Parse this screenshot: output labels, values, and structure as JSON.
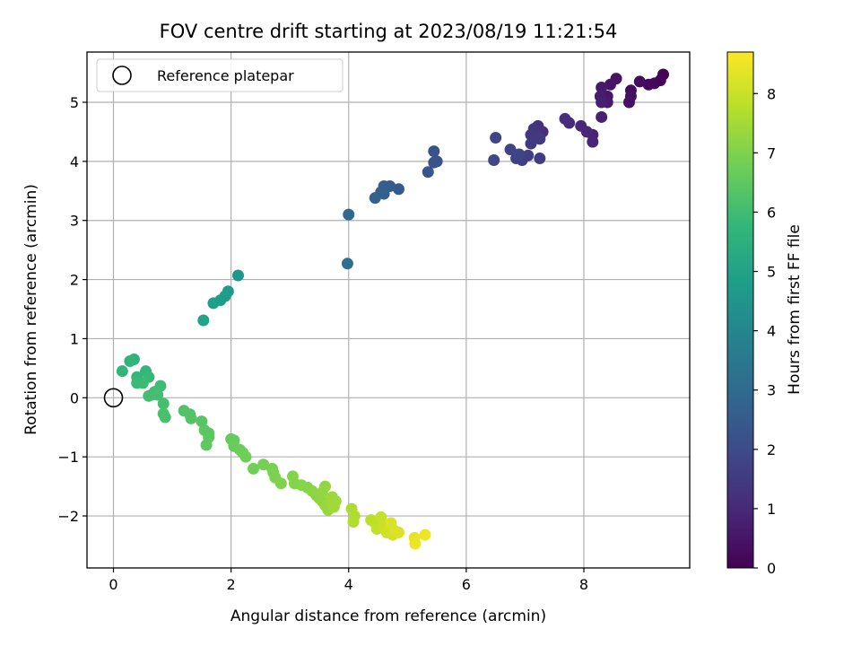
{
  "chart_data": {
    "type": "scatter",
    "title": "FOV centre drift starting at 2023/08/19 11:21:54",
    "xlabel": "Angular distance from reference (arcmin)",
    "ylabel": "Rotation from reference (arcmin)",
    "xlim": [
      -0.45,
      9.8
    ],
    "ylim": [
      -2.88,
      5.85
    ],
    "xticks": [
      0,
      2,
      4,
      6,
      8
    ],
    "yticks": [
      -2,
      -1,
      0,
      1,
      2,
      3,
      4,
      5
    ],
    "grid": true,
    "legend": {
      "position": "top-left",
      "entries": [
        "Reference platepar"
      ]
    },
    "reference_point": {
      "x": 0,
      "y": 0,
      "label": "Reference platepar"
    },
    "colorbar": {
      "label": "Hours from first FF file",
      "colormap": "viridis",
      "range": [
        0,
        8.7
      ],
      "ticks": [
        0,
        1,
        2,
        3,
        4,
        5,
        6,
        7,
        8
      ]
    },
    "points": [
      {
        "x": 9.35,
        "y": 5.47,
        "c": 0.05
      },
      {
        "x": 9.3,
        "y": 5.37,
        "c": 0.1
      },
      {
        "x": 9.2,
        "y": 5.32,
        "c": 0.15
      },
      {
        "x": 9.1,
        "y": 5.3,
        "c": 0.2
      },
      {
        "x": 8.95,
        "y": 5.35,
        "c": 0.25
      },
      {
        "x": 8.8,
        "y": 5.2,
        "c": 0.3
      },
      {
        "x": 8.8,
        "y": 5.1,
        "c": 0.35
      },
      {
        "x": 8.77,
        "y": 5.0,
        "c": 0.4
      },
      {
        "x": 8.55,
        "y": 5.4,
        "c": 0.45
      },
      {
        "x": 8.45,
        "y": 5.3,
        "c": 0.5
      },
      {
        "x": 8.4,
        "y": 5.1,
        "c": 0.55
      },
      {
        "x": 8.4,
        "y": 5.0,
        "c": 0.6
      },
      {
        "x": 8.3,
        "y": 5.25,
        "c": 0.65
      },
      {
        "x": 8.28,
        "y": 5.1,
        "c": 0.7
      },
      {
        "x": 8.3,
        "y": 5.0,
        "c": 0.75
      },
      {
        "x": 8.3,
        "y": 4.75,
        "c": 0.8
      },
      {
        "x": 8.15,
        "y": 4.45,
        "c": 0.85
      },
      {
        "x": 8.15,
        "y": 4.33,
        "c": 0.9
      },
      {
        "x": 8.05,
        "y": 4.5,
        "c": 0.95
      },
      {
        "x": 7.95,
        "y": 4.6,
        "c": 1.0
      },
      {
        "x": 7.75,
        "y": 4.65,
        "c": 1.05
      },
      {
        "x": 7.68,
        "y": 4.72,
        "c": 1.1
      },
      {
        "x": 7.3,
        "y": 4.5,
        "c": 1.2
      },
      {
        "x": 7.22,
        "y": 4.6,
        "c": 1.25
      },
      {
        "x": 7.2,
        "y": 4.45,
        "c": 1.3
      },
      {
        "x": 7.15,
        "y": 4.55,
        "c": 1.35
      },
      {
        "x": 7.1,
        "y": 4.45,
        "c": 1.4
      },
      {
        "x": 7.25,
        "y": 4.38,
        "c": 1.45
      },
      {
        "x": 7.1,
        "y": 4.3,
        "c": 1.5
      },
      {
        "x": 7.25,
        "y": 4.05,
        "c": 1.55
      },
      {
        "x": 7.05,
        "y": 4.1,
        "c": 1.6
      },
      {
        "x": 6.95,
        "y": 4.02,
        "c": 1.65
      },
      {
        "x": 6.85,
        "y": 4.05,
        "c": 1.7
      },
      {
        "x": 6.75,
        "y": 4.2,
        "c": 1.75
      },
      {
        "x": 6.9,
        "y": 4.12,
        "c": 1.8
      },
      {
        "x": 6.5,
        "y": 4.4,
        "c": 1.85
      },
      {
        "x": 6.47,
        "y": 4.02,
        "c": 1.9
      },
      {
        "x": 5.5,
        "y": 4.0,
        "c": 2.15
      },
      {
        "x": 5.45,
        "y": 4.17,
        "c": 2.2
      },
      {
        "x": 5.45,
        "y": 3.98,
        "c": 2.25
      },
      {
        "x": 5.35,
        "y": 3.82,
        "c": 2.3
      },
      {
        "x": 4.85,
        "y": 3.53,
        "c": 2.45
      },
      {
        "x": 4.7,
        "y": 3.58,
        "c": 2.5
      },
      {
        "x": 4.6,
        "y": 3.58,
        "c": 2.55
      },
      {
        "x": 4.55,
        "y": 3.48,
        "c": 2.6
      },
      {
        "x": 4.6,
        "y": 3.45,
        "c": 2.65
      },
      {
        "x": 4.45,
        "y": 3.38,
        "c": 2.7
      },
      {
        "x": 4.0,
        "y": 3.1,
        "c": 2.9
      },
      {
        "x": 3.98,
        "y": 2.27,
        "c": 3.2
      },
      {
        "x": 2.12,
        "y": 2.07,
        "c": 4.6
      },
      {
        "x": 1.95,
        "y": 1.8,
        "c": 4.7
      },
      {
        "x": 1.9,
        "y": 1.72,
        "c": 4.75
      },
      {
        "x": 1.82,
        "y": 1.65,
        "c": 4.8
      },
      {
        "x": 1.7,
        "y": 1.6,
        "c": 4.85
      },
      {
        "x": 1.53,
        "y": 1.31,
        "c": 5.0
      },
      {
        "x": 0.35,
        "y": 0.65,
        "c": 5.6
      },
      {
        "x": 0.28,
        "y": 0.62,
        "c": 5.65
      },
      {
        "x": 0.15,
        "y": 0.45,
        "c": 5.7
      },
      {
        "x": 0.55,
        "y": 0.45,
        "c": 5.75
      },
      {
        "x": 0.4,
        "y": 0.35,
        "c": 5.8
      },
      {
        "x": 0.6,
        "y": 0.35,
        "c": 5.85
      },
      {
        "x": 0.4,
        "y": 0.25,
        "c": 5.9
      },
      {
        "x": 0.5,
        "y": 0.25,
        "c": 5.92
      },
      {
        "x": 0.8,
        "y": 0.2,
        "c": 5.95
      },
      {
        "x": 0.7,
        "y": 0.1,
        "c": 6.0
      },
      {
        "x": 0.65,
        "y": 0.05,
        "c": 6.02
      },
      {
        "x": 0.6,
        "y": 0.03,
        "c": 6.05
      },
      {
        "x": 0.75,
        "y": 0.05,
        "c": 6.08
      },
      {
        "x": 0.85,
        "y": -0.1,
        "c": 6.1
      },
      {
        "x": 0.85,
        "y": -0.27,
        "c": 6.15
      },
      {
        "x": 0.88,
        "y": -0.33,
        "c": 6.18
      },
      {
        "x": 1.2,
        "y": -0.22,
        "c": 6.25
      },
      {
        "x": 1.3,
        "y": -0.28,
        "c": 6.3
      },
      {
        "x": 1.32,
        "y": -0.35,
        "c": 6.33
      },
      {
        "x": 1.5,
        "y": -0.4,
        "c": 6.38
      },
      {
        "x": 1.55,
        "y": -0.55,
        "c": 6.42
      },
      {
        "x": 1.62,
        "y": -0.6,
        "c": 6.45
      },
      {
        "x": 1.62,
        "y": -0.67,
        "c": 6.48
      },
      {
        "x": 1.58,
        "y": -0.8,
        "c": 6.5
      },
      {
        "x": 2.0,
        "y": -0.7,
        "c": 6.6
      },
      {
        "x": 2.05,
        "y": -0.72,
        "c": 6.63
      },
      {
        "x": 2.05,
        "y": -0.82,
        "c": 6.66
      },
      {
        "x": 2.15,
        "y": -0.88,
        "c": 6.7
      },
      {
        "x": 2.2,
        "y": -0.93,
        "c": 6.73
      },
      {
        "x": 2.25,
        "y": -1.0,
        "c": 6.76
      },
      {
        "x": 2.38,
        "y": -1.2,
        "c": 6.8
      },
      {
        "x": 2.55,
        "y": -1.13,
        "c": 6.85
      },
      {
        "x": 2.7,
        "y": -1.2,
        "c": 6.9
      },
      {
        "x": 2.72,
        "y": -1.27,
        "c": 6.93
      },
      {
        "x": 2.75,
        "y": -1.35,
        "c": 6.96
      },
      {
        "x": 2.85,
        "y": -1.45,
        "c": 7.0
      },
      {
        "x": 3.05,
        "y": -1.33,
        "c": 7.05
      },
      {
        "x": 3.08,
        "y": -1.45,
        "c": 7.08
      },
      {
        "x": 3.2,
        "y": -1.48,
        "c": 7.1
      },
      {
        "x": 3.3,
        "y": -1.52,
        "c": 7.12
      },
      {
        "x": 3.38,
        "y": -1.58,
        "c": 7.15
      },
      {
        "x": 3.45,
        "y": -1.65,
        "c": 7.18
      },
      {
        "x": 3.5,
        "y": -1.7,
        "c": 7.2
      },
      {
        "x": 3.55,
        "y": -1.75,
        "c": 7.22
      },
      {
        "x": 3.6,
        "y": -1.5,
        "c": 7.25
      },
      {
        "x": 3.55,
        "y": -1.6,
        "c": 7.27
      },
      {
        "x": 3.6,
        "y": -1.82,
        "c": 7.3
      },
      {
        "x": 3.65,
        "y": -1.9,
        "c": 7.33
      },
      {
        "x": 3.7,
        "y": -1.78,
        "c": 7.36
      },
      {
        "x": 3.72,
        "y": -1.68,
        "c": 7.4
      },
      {
        "x": 3.78,
        "y": -1.75,
        "c": 7.42
      },
      {
        "x": 3.75,
        "y": -1.85,
        "c": 7.45
      },
      {
        "x": 4.05,
        "y": -1.88,
        "c": 7.6
      },
      {
        "x": 4.1,
        "y": -2.0,
        "c": 7.65
      },
      {
        "x": 4.08,
        "y": -2.1,
        "c": 7.68
      },
      {
        "x": 4.38,
        "y": -2.07,
        "c": 7.8
      },
      {
        "x": 4.45,
        "y": -2.12,
        "c": 7.85
      },
      {
        "x": 4.48,
        "y": -2.22,
        "c": 7.9
      },
      {
        "x": 4.55,
        "y": -2.02,
        "c": 7.95
      },
      {
        "x": 4.6,
        "y": -2.18,
        "c": 8.0
      },
      {
        "x": 4.65,
        "y": -2.28,
        "c": 8.05
      },
      {
        "x": 4.7,
        "y": -2.2,
        "c": 8.1
      },
      {
        "x": 4.75,
        "y": -2.32,
        "c": 8.15
      },
      {
        "x": 4.72,
        "y": -2.12,
        "c": 8.2
      },
      {
        "x": 4.78,
        "y": -2.25,
        "c": 8.22
      },
      {
        "x": 4.85,
        "y": -2.28,
        "c": 8.25
      },
      {
        "x": 5.12,
        "y": -2.37,
        "c": 8.4
      },
      {
        "x": 5.13,
        "y": -2.47,
        "c": 8.45
      },
      {
        "x": 5.3,
        "y": -2.32,
        "c": 8.5
      }
    ]
  }
}
